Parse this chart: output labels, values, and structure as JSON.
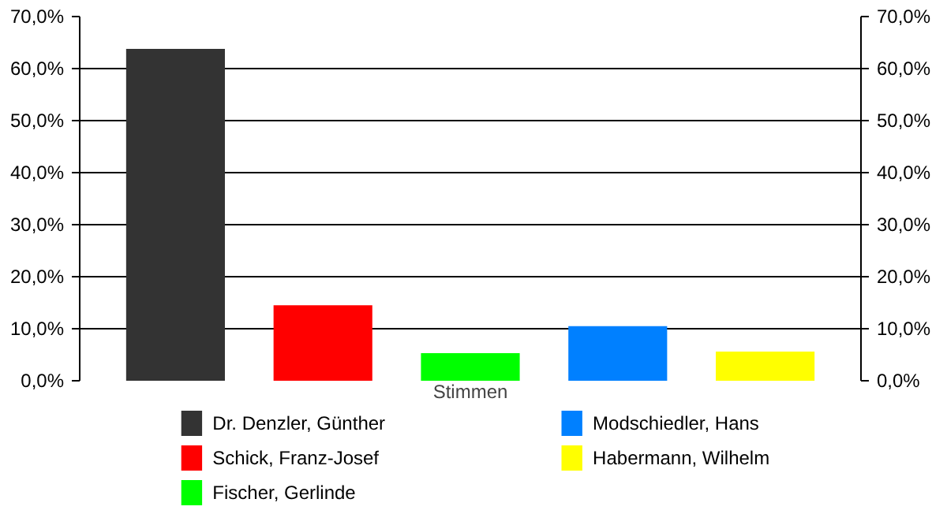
{
  "chart_data": {
    "type": "bar",
    "xlabel": "Stimmen",
    "categories": [
      null
    ],
    "series": [
      {
        "name": "Dr. Denzler, Günther",
        "color": "#333333",
        "values": [
          63.8
        ]
      },
      {
        "name": "Schick, Franz-Josef",
        "color": "#ff0000",
        "values": [
          14.5
        ]
      },
      {
        "name": "Fischer, Gerlinde",
        "color": "#00ff00",
        "values": [
          5.3
        ]
      },
      {
        "name": "Modschiedler, Hans",
        "color": "#0080ff",
        "values": [
          10.5
        ]
      },
      {
        "name": "Habermann, Wilhelm",
        "color": "#ffff00",
        "values": [
          5.6
        ]
      }
    ],
    "ylim": [
      0,
      70
    ],
    "yticks": [
      {
        "value": 0,
        "label": "0,0%"
      },
      {
        "value": 10,
        "label": "10,0%"
      },
      {
        "value": 20,
        "label": "20,0%"
      },
      {
        "value": 30,
        "label": "30,0%"
      },
      {
        "value": 40,
        "label": "40,0%"
      },
      {
        "value": 50,
        "label": "50,0%"
      },
      {
        "value": 60,
        "label": "60,0%"
      },
      {
        "value": 70,
        "label": "70,0%"
      }
    ],
    "y2lim": [
      0,
      70
    ],
    "y2ticks": [
      {
        "value": 0,
        "label": "0,0%"
      },
      {
        "value": 10,
        "label": "10,0%"
      },
      {
        "value": 20,
        "label": "20,0%"
      },
      {
        "value": 30,
        "label": "30,0%"
      },
      {
        "value": 40,
        "label": "40,0%"
      },
      {
        "value": 50,
        "label": "50,0%"
      },
      {
        "value": 60,
        "label": "60,0%"
      },
      {
        "value": 70,
        "label": "70,0%"
      }
    ],
    "grid": "y",
    "legend": "bottom"
  }
}
